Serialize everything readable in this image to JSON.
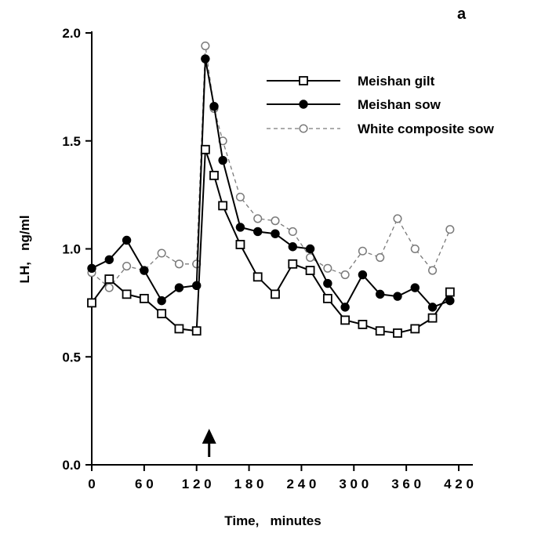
{
  "chart_data": {
    "type": "line",
    "panel_label": "a",
    "xlabel": "Time,   minutes",
    "ylabel": "LH,   ng/ml",
    "xlim": [
      0,
      420
    ],
    "ylim": [
      0,
      2.0
    ],
    "xticks": [
      0,
      60,
      120,
      180,
      240,
      300,
      360,
      420
    ],
    "xtick_labels": [
      "0",
      "6 0",
      "1 2 0",
      "1 8 0",
      "2 4 0",
      "3 0 0",
      "3 6 0",
      "4 2 0"
    ],
    "yticks": [
      0,
      0.5,
      1.0,
      1.5,
      2.0
    ],
    "ytick_labels": [
      "0.0",
      "0.5",
      "1.0",
      "1.5",
      "2.0"
    ],
    "annotation": {
      "type": "arrow",
      "x": 120,
      "direction": "up"
    },
    "legend_position": "top-right",
    "grid": false,
    "series": [
      {
        "name": "Meishan gilt",
        "style": "solid",
        "marker": "open-square",
        "color": "#000000",
        "x": [
          0,
          20,
          40,
          60,
          80,
          100,
          120,
          130,
          140,
          150,
          170,
          190,
          210,
          230,
          250,
          270,
          290,
          310,
          330,
          350,
          370,
          390,
          410
        ],
        "y": [
          0.75,
          0.86,
          0.79,
          0.77,
          0.7,
          0.63,
          0.62,
          1.46,
          1.34,
          1.2,
          1.02,
          0.87,
          0.79,
          0.93,
          0.9,
          0.77,
          0.67,
          0.65,
          0.62,
          0.61,
          0.63,
          0.68,
          0.8
        ]
      },
      {
        "name": "Meishan sow",
        "style": "solid",
        "marker": "filled-circle",
        "color": "#000000",
        "x": [
          0,
          20,
          40,
          60,
          80,
          100,
          120,
          130,
          140,
          150,
          170,
          190,
          210,
          230,
          250,
          270,
          290,
          310,
          330,
          350,
          370,
          390,
          410
        ],
        "y": [
          0.91,
          0.95,
          1.04,
          0.9,
          0.76,
          0.82,
          0.83,
          1.88,
          1.66,
          1.41,
          1.1,
          1.08,
          1.07,
          1.01,
          1.0,
          0.84,
          0.73,
          0.88,
          0.79,
          0.78,
          0.82,
          0.73,
          0.76
        ]
      },
      {
        "name": "White composite sow",
        "style": "dashed",
        "marker": "open-circle",
        "color": "#7a7a7a",
        "x": [
          0,
          20,
          40,
          60,
          80,
          100,
          120,
          130,
          140,
          150,
          170,
          190,
          210,
          230,
          250,
          270,
          290,
          310,
          330,
          350,
          370,
          390,
          410
        ],
        "y": [
          0.89,
          0.82,
          0.92,
          0.9,
          0.98,
          0.93,
          0.93,
          1.94,
          1.65,
          1.5,
          1.24,
          1.14,
          1.13,
          1.08,
          0.96,
          0.91,
          0.88,
          0.99,
          0.96,
          1.14,
          1.0,
          0.9,
          1.09
        ]
      }
    ]
  }
}
